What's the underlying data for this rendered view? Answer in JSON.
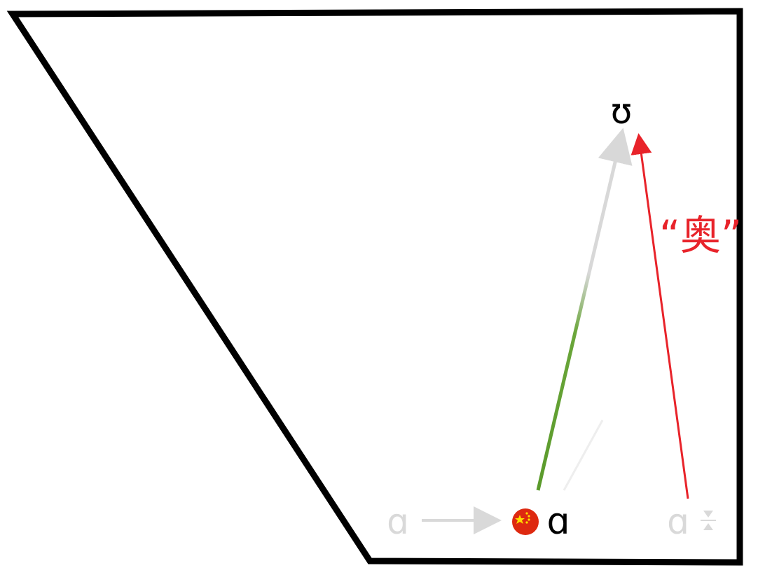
{
  "diagram": {
    "symbols": {
      "target_vowel": "ʊ",
      "source_vowel": "ɑ",
      "left_ghost_vowel": "ɑ",
      "right_ghost_vowel": "ɑ"
    },
    "annotation": {
      "text": "“奥”"
    },
    "colors": {
      "outline": "#000000",
      "glide_arrow": "#5a9a2b",
      "annotation_arrow": "#e8232a",
      "ghost": "#d9d9d9",
      "flag_red": "#de2910",
      "flag_star": "#ffde00"
    },
    "icons": [
      "china-flag-icon"
    ]
  }
}
